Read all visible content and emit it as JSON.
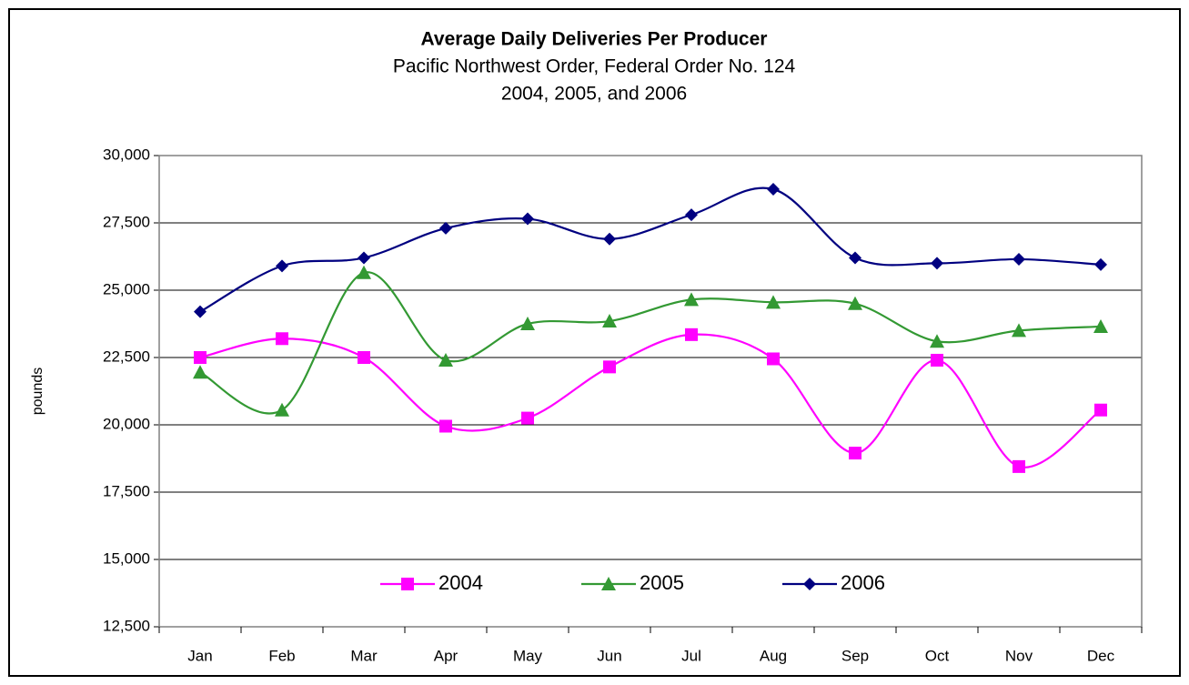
{
  "chart_data": {
    "type": "line",
    "title": "Average Daily Deliveries Per Producer",
    "subtitle": [
      "Pacific Northwest Order, Federal Order No. 124",
      "2004, 2005, and 2006"
    ],
    "y_label": "pounds",
    "categories": [
      "Jan",
      "Feb",
      "Mar",
      "Apr",
      "May",
      "Jun",
      "Jul",
      "Aug",
      "Sep",
      "Oct",
      "Nov",
      "Dec"
    ],
    "series": [
      {
        "name": "2004",
        "color": "#ff00ff",
        "marker": "square",
        "values": [
          22500,
          23200,
          22500,
          19950,
          20250,
          22150,
          23350,
          22450,
          18950,
          22400,
          18450,
          20550
        ]
      },
      {
        "name": "2005",
        "color": "#339933",
        "marker": "triangle",
        "values": [
          21950,
          20550,
          25650,
          22400,
          23750,
          23850,
          24650,
          24550,
          24500,
          23100,
          23500,
          23650
        ]
      },
      {
        "name": "2006",
        "color": "#000080",
        "marker": "diamond",
        "values": [
          24200,
          25900,
          26200,
          27300,
          27650,
          26900,
          27800,
          28750,
          26200,
          26000,
          26150,
          25950
        ]
      }
    ],
    "ylim": [
      12500,
      30000
    ],
    "yticks": [
      {
        "value": 12500,
        "label": "12,500"
      },
      {
        "value": 15000,
        "label": "15,000"
      },
      {
        "value": 17500,
        "label": "17,500"
      },
      {
        "value": 20000,
        "label": "20,000"
      },
      {
        "value": 22500,
        "label": "22,500"
      },
      {
        "value": 25000,
        "label": "25,000"
      },
      {
        "value": 27500,
        "label": "27,500"
      },
      {
        "value": 30000,
        "label": "30,000"
      }
    ],
    "grid": true,
    "smooth": true,
    "legend": "bottom"
  }
}
